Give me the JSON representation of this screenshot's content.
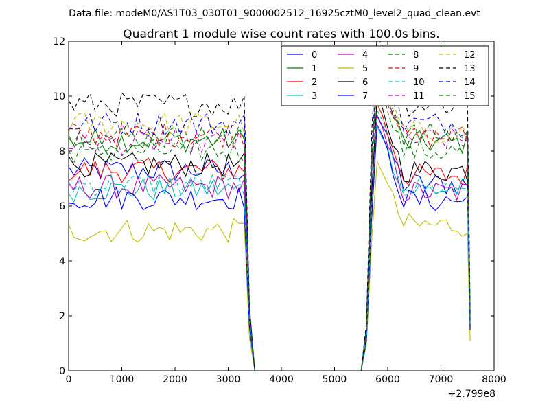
{
  "chart_data": {
    "type": "line",
    "suptitle": "Data file: modeM0/AS1T03_030T01_9000002512_16925cztM0_level2_quad_clean.evt",
    "title": "Quadrant 1 module wise count rates with 100.0s bins.",
    "xlabel": "",
    "ylabel": "",
    "x_offset_label": "+2.799e8",
    "xlim": [
      0,
      8000
    ],
    "ylim": [
      0,
      12
    ],
    "xticks": [
      0,
      1000,
      2000,
      3000,
      4000,
      5000,
      6000,
      7000,
      8000
    ],
    "yticks": [
      0,
      2,
      4,
      6,
      8,
      10,
      12
    ],
    "xtick_labels": [
      "0",
      "1000",
      "2000",
      "3000",
      "4000",
      "5000",
      "6000",
      "7000",
      "8000"
    ],
    "ytick_labels": [
      "0",
      "2",
      "4",
      "6",
      "8",
      "10",
      "12"
    ],
    "grid": false,
    "legend_position": "top-right",
    "segment_a": {
      "x_start": 0,
      "x_end": 3300,
      "step": 100
    },
    "gap": {
      "drop_x": [
        3400,
        3500
      ],
      "zero_until": 5500
    },
    "segment_b": {
      "x_start": 5600,
      "x_end": 7500,
      "step": 100,
      "fall_x": 7550
    },
    "series": [
      {
        "name": "0",
        "color": "#0000ff",
        "dash": "solid",
        "level_a": 7.3,
        "level_b": 6.8,
        "end": 1.6
      },
      {
        "name": "1",
        "color": "#008000",
        "dash": "solid",
        "level_a": 8.4,
        "level_b": 8.3,
        "end": 1.8
      },
      {
        "name": "2",
        "color": "#ff0000",
        "dash": "solid",
        "level_a": 7.3,
        "level_b": 7.1,
        "end": 1.7
      },
      {
        "name": "3",
        "color": "#00bfbf",
        "dash": "solid",
        "level_a": 6.6,
        "level_b": 6.6,
        "end": 1.6
      },
      {
        "name": "4",
        "color": "#bf00bf",
        "dash": "solid",
        "level_a": 6.7,
        "level_b": 6.5,
        "end": 1.6
      },
      {
        "name": "5",
        "color": "#bfbf00",
        "dash": "solid",
        "level_a": 5.1,
        "level_b": 5.3,
        "end": 1.1
      },
      {
        "name": "6",
        "color": "#000000",
        "dash": "solid",
        "level_a": 7.5,
        "level_b": 7.3,
        "end": 1.7
      },
      {
        "name": "7",
        "color": "#0000ff",
        "dash": "solid",
        "level_a": 6.3,
        "level_b": 6.2,
        "end": 1.5
      },
      {
        "name": "8",
        "color": "#008000",
        "dash": "dashed",
        "level_a": 8.0,
        "level_b": 8.0,
        "end": 1.9
      },
      {
        "name": "9",
        "color": "#ff0000",
        "dash": "dashed",
        "level_a": 8.6,
        "level_b": 8.5,
        "end": 2.0
      },
      {
        "name": "10",
        "color": "#00bfbf",
        "dash": "dashed",
        "level_a": 6.8,
        "level_b": 6.7,
        "end": 1.6
      },
      {
        "name": "11",
        "color": "#bf00bf",
        "dash": "dashed",
        "level_a": 8.3,
        "level_b": 8.4,
        "end": 1.9
      },
      {
        "name": "12",
        "color": "#bfbf00",
        "dash": "dashed",
        "level_a": 9.0,
        "level_b": 8.7,
        "end": 2.0
      },
      {
        "name": "13",
        "color": "#000000",
        "dash": "dashed",
        "level_a": 9.7,
        "level_b": 9.7,
        "end": 2.2
      },
      {
        "name": "14",
        "color": "#0000ff",
        "dash": "dashed",
        "level_a": 9.0,
        "level_b": 9.0,
        "end": 2.1
      },
      {
        "name": "15",
        "color": "#008000",
        "dash": "dashed",
        "level_a": 8.5,
        "level_b": 8.6,
        "end": 2.0
      }
    ]
  }
}
